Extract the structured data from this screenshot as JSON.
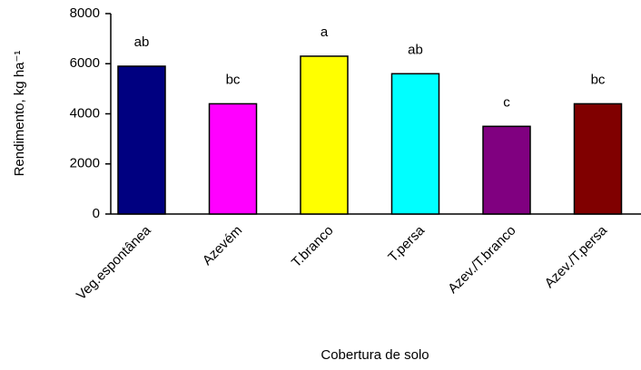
{
  "chart_data": {
    "type": "bar",
    "x_label": "Cobertura de solo",
    "y_label": "Rendimento, kg ha⁻¹",
    "categories": [
      "Veg.espontânea",
      "Azevém",
      "T.branco",
      "T.persa",
      "Azev./T.branco",
      "Azev./T.persa"
    ],
    "values": [
      5900,
      4400,
      6300,
      5600,
      3500,
      4400
    ],
    "colors": [
      "#000080",
      "#ff00ff",
      "#ffff00",
      "#00ffff",
      "#800080",
      "#800000"
    ],
    "annotations": [
      "ab",
      "bc",
      "a",
      "ab",
      "c",
      "bc"
    ],
    "ylim": [
      0,
      8000
    ],
    "yticks": [
      0,
      2000,
      4000,
      6000,
      8000
    ],
    "grid": false
  }
}
